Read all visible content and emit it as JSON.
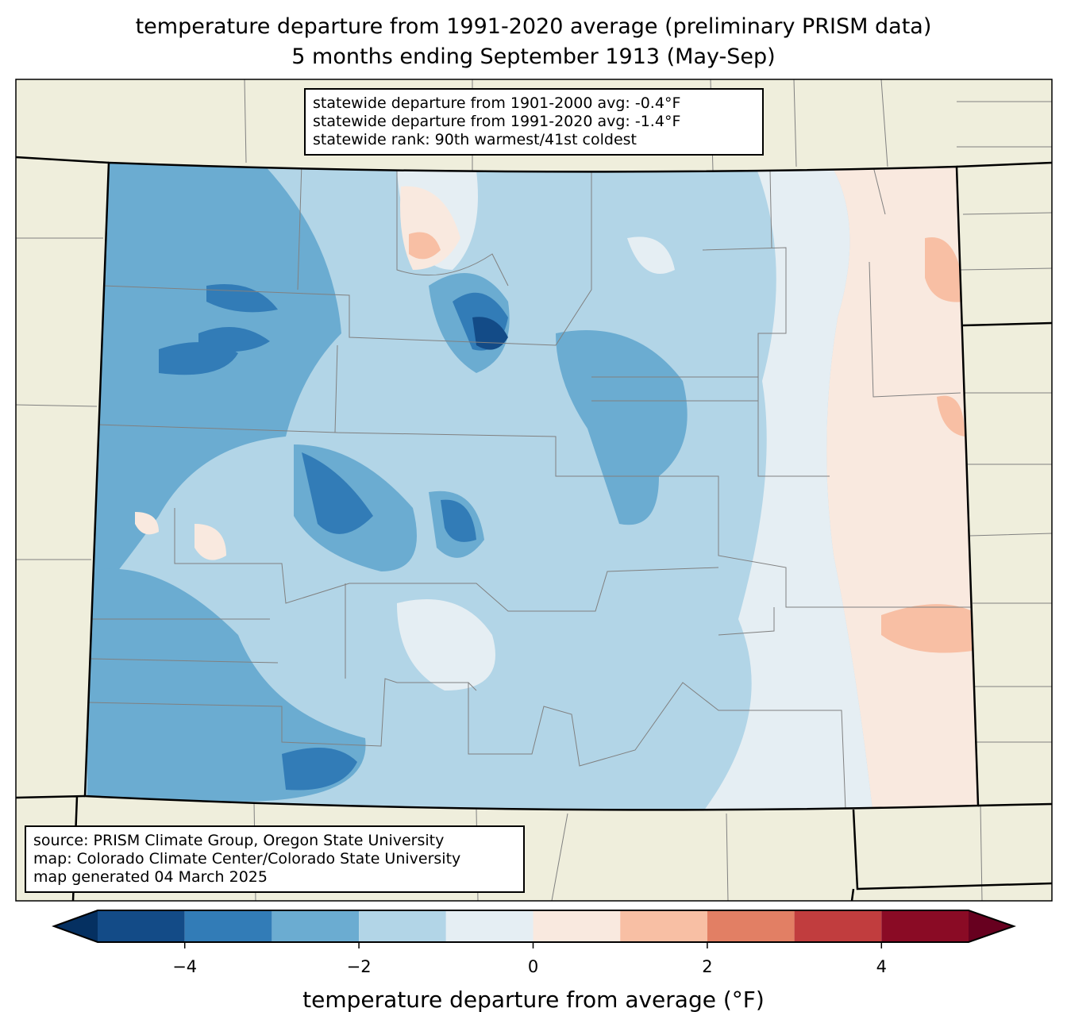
{
  "title": {
    "line1": "temperature departure from 1991-2020 average (preliminary PRISM data)",
    "line2": "5 months ending September 1913 (May-Sep)"
  },
  "stats_box": {
    "line1": "statewide departure from 1901-2000 avg: -0.4°F",
    "line2": "statewide departure from 1991-2020 avg: -1.4°F",
    "line3": "statewide rank: 90th warmest/41st coldest"
  },
  "source_box": {
    "line1": "source: PRISM Climate Group, Oregon State University",
    "line2": "map: Colorado Climate Center/Colorado State University",
    "line3": "map generated 04 March 2025"
  },
  "colorbar": {
    "label": "temperature departure from average (°F)",
    "min": -5,
    "max": 5,
    "ticks": [
      "−4",
      "−2",
      "0",
      "2",
      "4"
    ],
    "tick_values": [
      -4,
      -2,
      0,
      2,
      4
    ],
    "under_color": "#053061",
    "over_color": "#67001f",
    "bins": [
      {
        "from": -5,
        "to": -4,
        "color": "#134b87"
      },
      {
        "from": -4,
        "to": -3,
        "color": "#327cb7"
      },
      {
        "from": -3,
        "to": -2,
        "color": "#6bacd1"
      },
      {
        "from": -2,
        "to": -1,
        "color": "#b2d5e7"
      },
      {
        "from": -1,
        "to": 0,
        "color": "#e5eef3"
      },
      {
        "from": 0,
        "to": 1,
        "color": "#f9e9df"
      },
      {
        "from": 1,
        "to": 2,
        "color": "#f8bfa4"
      },
      {
        "from": 2,
        "to": 3,
        "color": "#e27f64"
      },
      {
        "from": 3,
        "to": 4,
        "color": "#c13d3e"
      },
      {
        "from": 4,
        "to": 5,
        "color": "#8a0b25"
      }
    ]
  },
  "map_colors": {
    "land": "#efeedc",
    "county_line": "#808080",
    "state_line": "#000000"
  }
}
